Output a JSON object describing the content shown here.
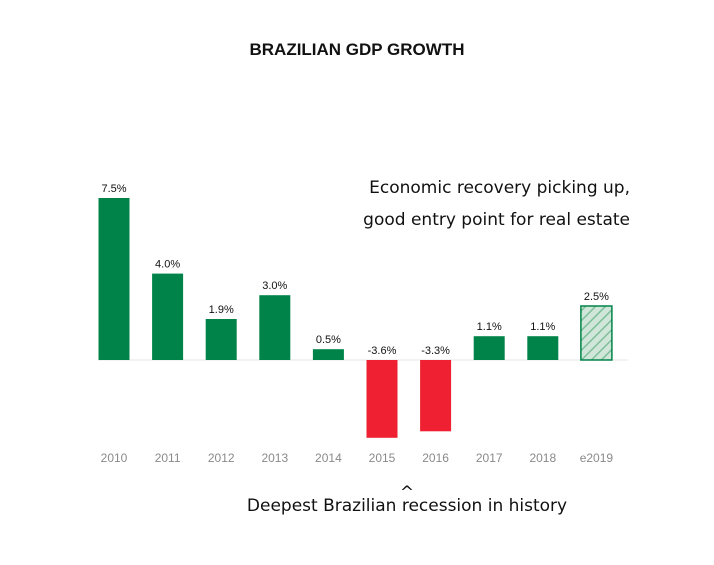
{
  "chart_data": {
    "type": "bar",
    "title": "BRAZILIAN GDP GROWTH",
    "categories": [
      "2010",
      "2011",
      "2012",
      "2013",
      "2014",
      "2015",
      "2016",
      "2017",
      "2018",
      "e2019"
    ],
    "values": [
      7.5,
      4.0,
      1.9,
      3.0,
      0.5,
      -3.6,
      -3.3,
      1.1,
      1.1,
      2.5
    ],
    "value_labels": [
      "7.5%",
      "4.0%",
      "1.9%",
      "3.0%",
      "0.5%",
      "-3.6%",
      "-3.3%",
      "1.1%",
      "1.1%",
      "2.5%"
    ],
    "bar_style": [
      "solid",
      "solid",
      "solid",
      "solid",
      "solid",
      "solid",
      "solid",
      "solid",
      "solid",
      "hatched"
    ],
    "xlabel": "",
    "ylabel": "",
    "ylim": [
      -3.6,
      7.5
    ],
    "grid": false,
    "legend": "none",
    "annotations": {
      "top_right_line1": "Economic recovery picking up,",
      "top_right_line2": "good entry point for real estate",
      "bottom_caret": "^",
      "bottom": "Deepest Brazilian recession in history"
    },
    "colors": {
      "positive": "#008348",
      "negative": "#ee2031",
      "forecast_fill": "#cfe6d9",
      "forecast_hatch": "#7fbf9b",
      "baseline": "#e6e6e6"
    }
  }
}
